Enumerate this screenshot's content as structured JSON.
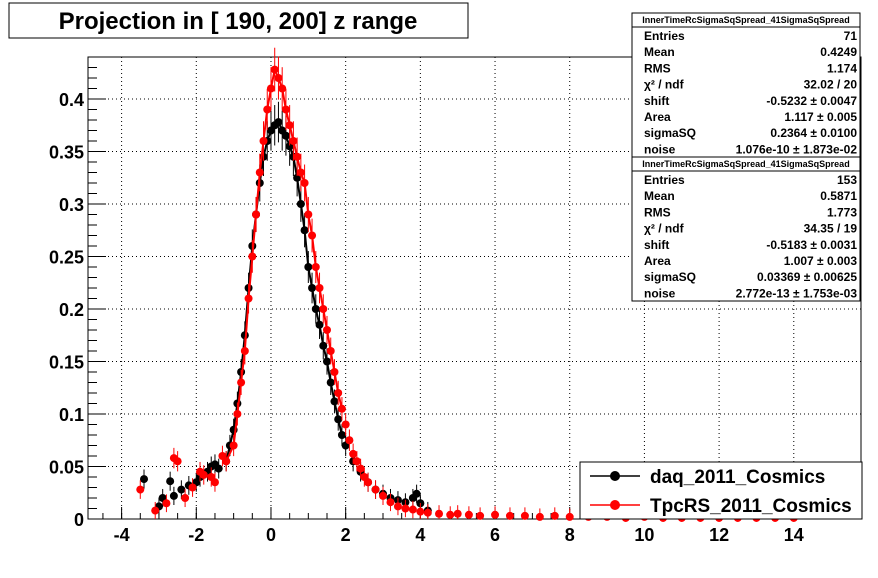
{
  "chart_data": {
    "type": "scatter",
    "title": "Projection in [ 190, 200] z range",
    "xlim": [
      -4.9,
      15.8
    ],
    "ylim": [
      0,
      0.44
    ],
    "x_ticks": [
      -4,
      -2,
      0,
      2,
      4,
      6,
      8,
      10,
      12,
      14
    ],
    "x_tick_labels": [
      "-4",
      "-2",
      "0",
      "2",
      "4",
      "6",
      "8",
      "10",
      "12",
      "14"
    ],
    "y_ticks": [
      0,
      0.05,
      0.1,
      0.15,
      0.2,
      0.25,
      0.3,
      0.35,
      0.4
    ],
    "y_tick_labels": [
      "0",
      "0.05",
      "0.1",
      "0.15",
      "0.2",
      "0.25",
      "0.3",
      "0.35",
      "0.4"
    ],
    "grid": true,
    "legend_placement": "bottom-right",
    "colors": {
      "series1": "#000000",
      "series2": "#ff0000"
    },
    "series": [
      {
        "name": "daq_2011_Cosmics",
        "color": "#000000",
        "points": [
          [
            -3.4,
            0.038
          ],
          [
            -3.0,
            0.012
          ],
          [
            -2.9,
            0.02
          ],
          [
            -2.7,
            0.036
          ],
          [
            -2.6,
            0.022
          ],
          [
            -2.4,
            0.028
          ],
          [
            -2.2,
            0.032
          ],
          [
            -2.0,
            0.035
          ],
          [
            -1.9,
            0.04
          ],
          [
            -1.7,
            0.045
          ],
          [
            -1.6,
            0.05
          ],
          [
            -1.5,
            0.052
          ],
          [
            -1.4,
            0.048
          ],
          [
            -1.2,
            0.055
          ],
          [
            -1.1,
            0.07
          ],
          [
            -1.0,
            0.085
          ],
          [
            -0.9,
            0.11
          ],
          [
            -0.8,
            0.14
          ],
          [
            -0.7,
            0.175
          ],
          [
            -0.6,
            0.22
          ],
          [
            -0.5,
            0.26
          ],
          [
            -0.4,
            0.29
          ],
          [
            -0.3,
            0.32
          ],
          [
            -0.2,
            0.345
          ],
          [
            -0.1,
            0.36
          ],
          [
            0.0,
            0.37
          ],
          [
            0.1,
            0.375
          ],
          [
            0.2,
            0.378
          ],
          [
            0.3,
            0.37
          ],
          [
            0.4,
            0.365
          ],
          [
            0.5,
            0.355
          ],
          [
            0.6,
            0.345
          ],
          [
            0.7,
            0.325
          ],
          [
            0.8,
            0.3
          ],
          [
            0.9,
            0.275
          ],
          [
            1.0,
            0.24
          ],
          [
            1.1,
            0.22
          ],
          [
            1.2,
            0.2
          ],
          [
            1.3,
            0.185
          ],
          [
            1.4,
            0.165
          ],
          [
            1.5,
            0.15
          ],
          [
            1.6,
            0.13
          ],
          [
            1.7,
            0.112
          ],
          [
            1.8,
            0.095
          ],
          [
            1.9,
            0.08
          ],
          [
            2.0,
            0.07
          ],
          [
            2.2,
            0.055
          ],
          [
            2.4,
            0.045
          ],
          [
            2.6,
            0.035
          ],
          [
            2.8,
            0.028
          ],
          [
            3.0,
            0.024
          ],
          [
            3.2,
            0.02
          ],
          [
            3.4,
            0.018
          ],
          [
            3.6,
            0.016
          ],
          [
            3.8,
            0.02
          ],
          [
            3.9,
            0.024
          ],
          [
            4.0,
            0.015
          ],
          [
            4.2,
            0.008
          ]
        ]
      },
      {
        "name": "TpcRS_2011_Cosmics",
        "color": "#ff0000",
        "points": [
          [
            -3.5,
            0.028
          ],
          [
            -3.1,
            0.008
          ],
          [
            -2.8,
            0.015
          ],
          [
            -2.6,
            0.058
          ],
          [
            -2.5,
            0.055
          ],
          [
            -2.3,
            0.02
          ],
          [
            -2.1,
            0.03
          ],
          [
            -1.9,
            0.045
          ],
          [
            -1.8,
            0.042
          ],
          [
            -1.6,
            0.04
          ],
          [
            -1.5,
            0.035
          ],
          [
            -1.3,
            0.06
          ],
          [
            -1.2,
            0.055
          ],
          [
            -1.0,
            0.07
          ],
          [
            -0.9,
            0.1
          ],
          [
            -0.8,
            0.13
          ],
          [
            -0.7,
            0.16
          ],
          [
            -0.6,
            0.21
          ],
          [
            -0.5,
            0.25
          ],
          [
            -0.4,
            0.29
          ],
          [
            -0.3,
            0.33
          ],
          [
            -0.2,
            0.36
          ],
          [
            -0.1,
            0.39
          ],
          [
            0.0,
            0.41
          ],
          [
            0.1,
            0.428
          ],
          [
            0.2,
            0.42
          ],
          [
            0.3,
            0.41
          ],
          [
            0.4,
            0.39
          ],
          [
            0.5,
            0.375
          ],
          [
            0.6,
            0.36
          ],
          [
            0.7,
            0.345
          ],
          [
            0.8,
            0.33
          ],
          [
            0.9,
            0.32
          ],
          [
            1.0,
            0.29
          ],
          [
            1.1,
            0.27
          ],
          [
            1.2,
            0.24
          ],
          [
            1.3,
            0.22
          ],
          [
            1.4,
            0.2
          ],
          [
            1.5,
            0.18
          ],
          [
            1.6,
            0.16
          ],
          [
            1.7,
            0.14
          ],
          [
            1.8,
            0.12
          ],
          [
            1.9,
            0.105
          ],
          [
            2.0,
            0.09
          ],
          [
            2.1,
            0.075
          ],
          [
            2.2,
            0.062
          ],
          [
            2.3,
            0.055
          ],
          [
            2.4,
            0.048
          ],
          [
            2.5,
            0.04
          ],
          [
            2.6,
            0.035
          ],
          [
            2.8,
            0.028
          ],
          [
            3.0,
            0.022
          ],
          [
            3.2,
            0.016
          ],
          [
            3.4,
            0.012
          ],
          [
            3.6,
            0.01
          ],
          [
            3.8,
            0.009
          ],
          [
            4.0,
            0.007
          ],
          [
            4.2,
            0.006
          ],
          [
            4.5,
            0.005
          ],
          [
            4.8,
            0.004
          ],
          [
            5.0,
            0.005
          ],
          [
            5.3,
            0.004
          ],
          [
            5.6,
            0.003
          ],
          [
            6.0,
            0.004
          ],
          [
            6.4,
            0.003
          ],
          [
            6.8,
            0.003
          ],
          [
            7.2,
            0.002
          ],
          [
            7.6,
            0.003
          ],
          [
            8.0,
            0.002
          ],
          [
            8.5,
            0.002
          ],
          [
            9.0,
            0.002
          ],
          [
            9.5,
            0.001
          ],
          [
            10.0,
            0.002
          ],
          [
            10.5,
            0.001
          ],
          [
            11.0,
            0.001
          ],
          [
            11.5,
            0.001
          ],
          [
            12.0,
            0.001
          ],
          [
            12.5,
            0.001
          ],
          [
            13.0,
            0.001
          ],
          [
            13.5,
            0.001
          ],
          [
            14.0,
            0.001
          ]
        ]
      }
    ],
    "stats_boxes": [
      {
        "title": "InnerTimeRcSigmaSqSpread_41SigmaSqSpread",
        "rows": [
          {
            "label": "Entries",
            "value": "71"
          },
          {
            "label": "Mean",
            "value": "0.4249"
          },
          {
            "label": "RMS",
            "value": "1.174"
          },
          {
            "label": "χ² / ndf",
            "value": "32.02 / 20"
          },
          {
            "label": "shift",
            "value": "-0.5232 ± 0.0047"
          },
          {
            "label": "Area",
            "value": "1.117 ± 0.005"
          },
          {
            "label": "sigmaSQ",
            "value": "0.2364 ± 0.0100"
          },
          {
            "label": "noise",
            "value": "1.076e-10 ± 1.873e-02"
          }
        ]
      },
      {
        "title": "InnerTimeRcSigmaSqSpread_41SigmaSqSpread",
        "rows": [
          {
            "label": "Entries",
            "value": "153"
          },
          {
            "label": "Mean",
            "value": "0.5871"
          },
          {
            "label": "RMS",
            "value": "1.773"
          },
          {
            "label": "χ² / ndf",
            "value": "34.35 / 19"
          },
          {
            "label": "shift",
            "value": "-0.5183 ± 0.0031"
          },
          {
            "label": "Area",
            "value": "1.007 ± 0.003"
          },
          {
            "label": "sigmaSQ",
            "value": "0.03369 ± 0.00625"
          },
          {
            "label": "noise",
            "value": "2.772e-13 ± 1.753e-03"
          }
        ]
      }
    ]
  }
}
